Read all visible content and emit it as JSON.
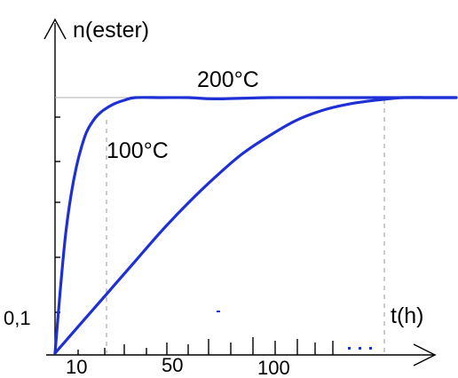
{
  "chart_data": {
    "type": "line",
    "ylabel": "n(ester)",
    "xlabel": "t(h)",
    "y_tick_labels": [
      "0,1"
    ],
    "x_tick_labels": [
      "10",
      "50",
      "100"
    ],
    "xlim": [
      0,
      150
    ],
    "ylim": [
      0,
      1
    ],
    "series": [
      {
        "name": "200°C",
        "color": "#1f2fd6",
        "x": [
          0,
          2,
          4,
          6,
          8,
          10,
          12,
          15,
          18,
          22,
          26,
          30,
          40,
          50,
          60,
          80,
          100,
          120,
          150
        ],
        "y": [
          0,
          0.25,
          0.47,
          0.62,
          0.73,
          0.81,
          0.87,
          0.92,
          0.95,
          0.975,
          0.99,
          1.0,
          1.0,
          1.0,
          0.995,
          1.0,
          1.0,
          1.0,
          1.0
        ]
      },
      {
        "name": "100°C",
        "color": "#1f2fd6",
        "x": [
          0,
          10,
          20,
          30,
          40,
          50,
          60,
          70,
          80,
          90,
          100,
          110,
          120,
          130,
          140,
          150
        ],
        "y": [
          0,
          0.12,
          0.24,
          0.36,
          0.48,
          0.59,
          0.69,
          0.78,
          0.85,
          0.91,
          0.95,
          0.975,
          0.99,
          1.0,
          1.0,
          1.0
        ]
      }
    ]
  }
}
